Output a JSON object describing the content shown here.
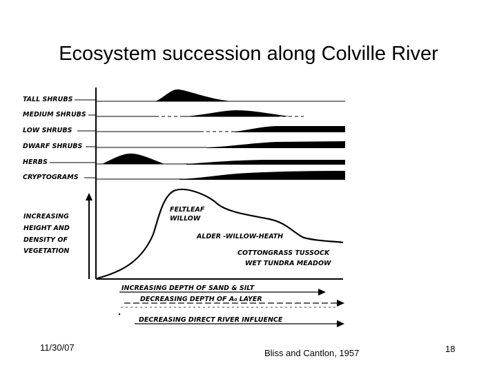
{
  "slide": {
    "title": "Ecosystem succession along Colville River",
    "date": "11/30/07",
    "source": "Bliss and Cantlon, 1957",
    "page_number": "18"
  },
  "diagram": {
    "rows": [
      "TALL SHRUBS",
      "MEDIUM SHRUBS",
      "LOW SHRUBS",
      "DWARF SHRUBS",
      "HERBS",
      "CRYPTOGRAMS"
    ],
    "y_axis_label": [
      "INCREASING",
      "HEIGHT  AND",
      "DENSITY  OF",
      "VEGETATION"
    ],
    "curve_labels": {
      "feltleaf": [
        "FELTLEAF",
        "WILLOW"
      ],
      "alder": "ALDER -WILLOW-HEATH",
      "cottongrass": [
        "COTTONGRASS TUSSOCK",
        "WET TUNDRA MEADOW"
      ]
    },
    "gradients": [
      "INCREASING DEPTH OF SAND & SILT",
      "DECREASING DEPTH OF A₀ LAYER",
      "DECREASING DIRECT RIVER  INFLUENCE"
    ]
  }
}
